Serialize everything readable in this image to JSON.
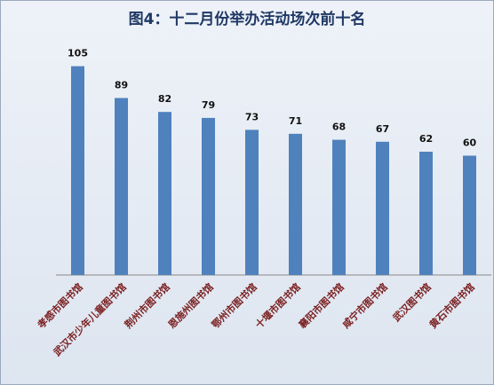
{
  "chart_data": {
    "type": "bar",
    "title": "图4：十二月份举办活动场次前十名",
    "categories": [
      "孝感市图书馆",
      "武汉市少年儿童图书馆",
      "荆州市图书馆",
      "恩施州图书馆",
      "鄂州市图书馆",
      "十堰市图书馆",
      "襄阳市图书馆",
      "咸宁市图书馆",
      "武汉图书馆",
      "黄石市图书馆"
    ],
    "values": [
      105,
      89,
      82,
      79,
      73,
      71,
      68,
      67,
      62,
      60
    ],
    "color": "#4f81bd",
    "ylim": [
      0,
      120
    ]
  }
}
